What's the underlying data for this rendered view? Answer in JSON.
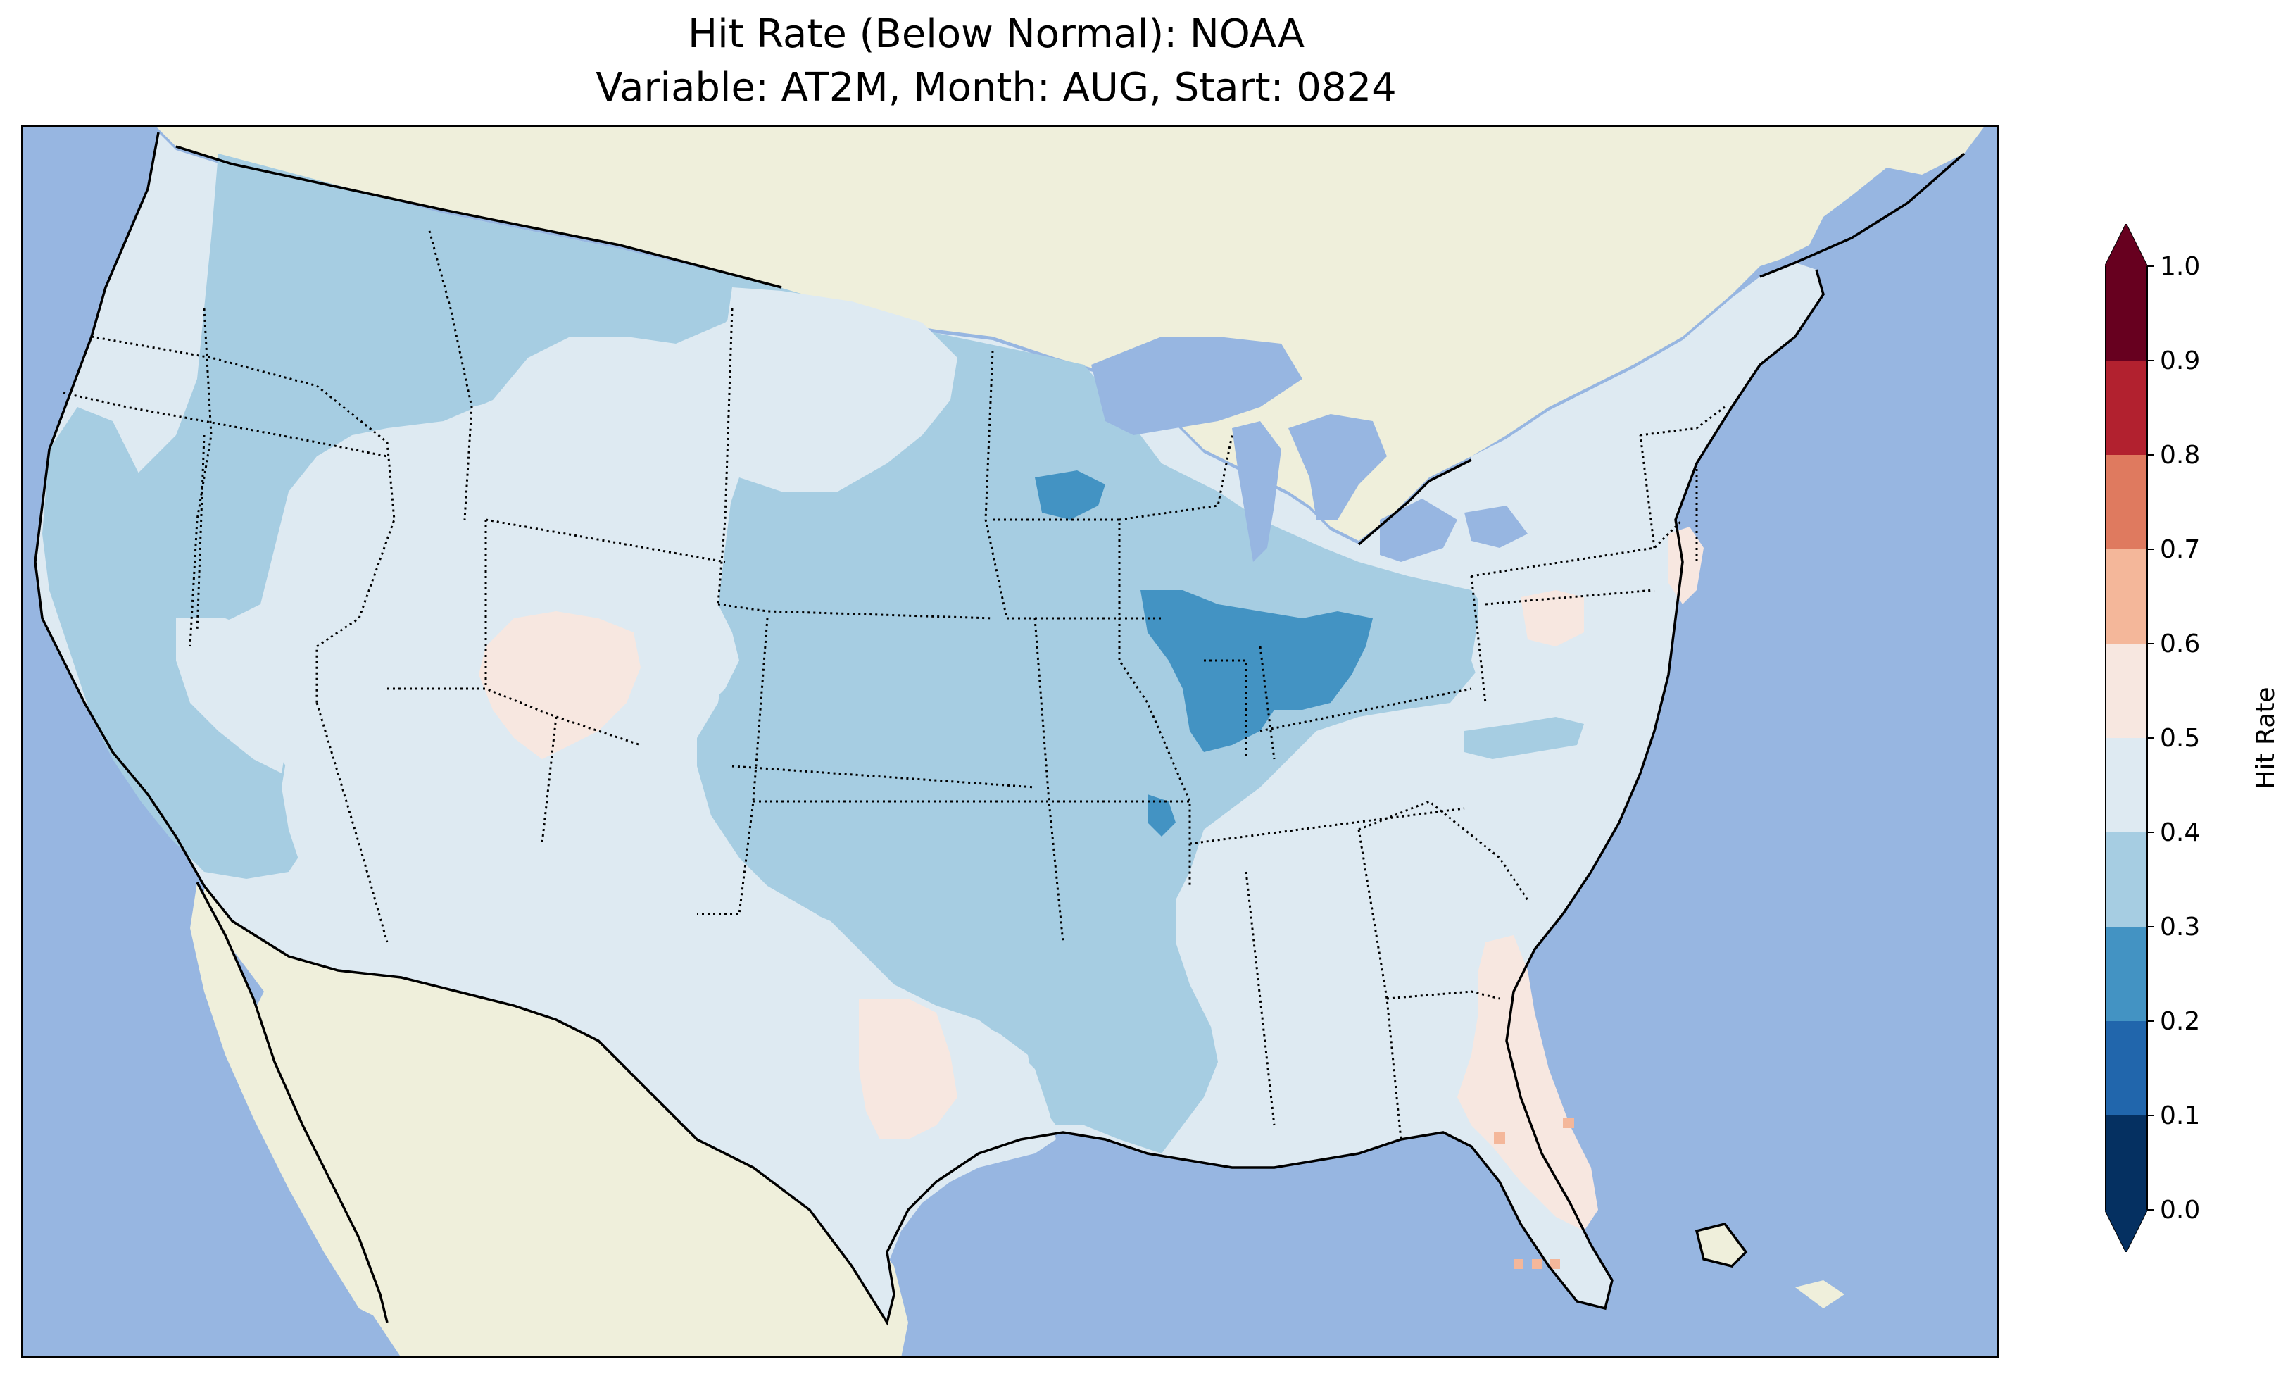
{
  "title_line1": "Hit Rate (Below Normal): NOAA",
  "title_line2": "Variable: AT2M, Month: AUG, Start: 0824",
  "colors": {
    "ocean": "#97b6e1",
    "land": "#efefdb",
    "border": "#000000"
  },
  "colorbar": {
    "label": "Hit Rate",
    "ticks": [
      "0.0",
      "0.1",
      "0.2",
      "0.3",
      "0.4",
      "0.5",
      "0.6",
      "0.7",
      "0.8",
      "0.9",
      "1.0"
    ],
    "colors": [
      "#053061",
      "#2166ac",
      "#4393c3",
      "#92c5de",
      "#d1e5f0",
      "#f7f7f7",
      "#fddbc7",
      "#f4a582",
      "#d6604d",
      "#b2182b",
      "#67001f"
    ],
    "bins": [
      {
        "range": "0.0-0.1",
        "color": "#053061"
      },
      {
        "range": "0.1-0.2",
        "color": "#2166ac"
      },
      {
        "range": "0.2-0.3",
        "color": "#4393c3"
      },
      {
        "range": "0.3-0.4",
        "color": "#a6cde2"
      },
      {
        "range": "0.4-0.5",
        "color": "#deeaf2"
      },
      {
        "range": "0.5-0.6",
        "color": "#f7e7e0"
      },
      {
        "range": "0.6-0.7",
        "color": "#f4b79a"
      },
      {
        "range": "0.7-0.8",
        "color": "#df7a5f"
      },
      {
        "range": "0.8-0.9",
        "color": "#b2212f"
      },
      {
        "range": "0.9-1.0",
        "color": "#67001f"
      }
    ],
    "extend": "both"
  },
  "regions": [
    {
      "name": "northwest-interior",
      "value_bin": "0.3-0.4"
    },
    {
      "name": "west-coast",
      "value_bin": "0.4-0.5"
    },
    {
      "name": "california",
      "value_bin": "0.3-0.4"
    },
    {
      "name": "great-basin",
      "value_bin": "0.4-0.5"
    },
    {
      "name": "utah-colorado-plateau",
      "value_bin": "0.5-0.6"
    },
    {
      "name": "wyoming",
      "value_bin": "0.4-0.5"
    },
    {
      "name": "north-dakota-core",
      "value_bin": "0.4-0.5"
    },
    {
      "name": "central-plains",
      "value_bin": "0.3-0.4"
    },
    {
      "name": "minnesota-spot",
      "value_bin": "0.2-0.3"
    },
    {
      "name": "illinois-indiana",
      "value_bin": "0.2-0.3"
    },
    {
      "name": "arkansas-spot",
      "value_bin": "0.2-0.3"
    },
    {
      "name": "southern-plains",
      "value_bin": "0.4-0.5"
    },
    {
      "name": "west-texas",
      "value_bin": "0.5-0.6"
    },
    {
      "name": "southeast",
      "value_bin": "0.4-0.5"
    },
    {
      "name": "florida-georgia-coast",
      "value_bin": "0.5-0.6"
    },
    {
      "name": "virginia-spot",
      "value_bin": "0.5-0.6"
    },
    {
      "name": "new-jersey",
      "value_bin": "0.5-0.6"
    },
    {
      "name": "florida-keys",
      "value_bin": "0.6-0.7"
    },
    {
      "name": "northeast",
      "value_bin": "0.4-0.5"
    }
  ]
}
